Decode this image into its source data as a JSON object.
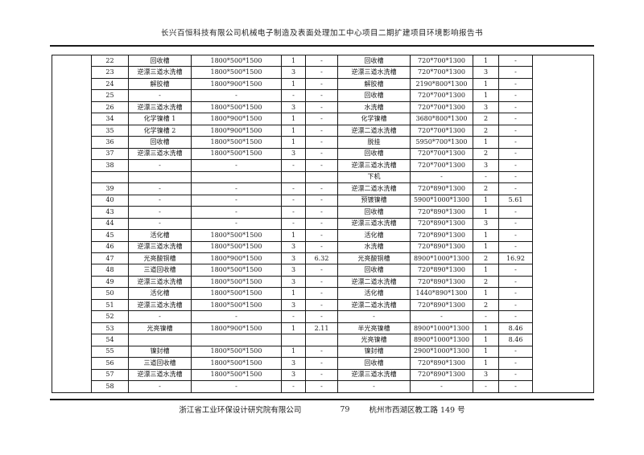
{
  "header": {
    "title": "长兴百恒科技有限公司机械电子制造及表面处理加工中心项目二期扩建项目环境影响报告书"
  },
  "footer": {
    "company": "浙江省工业环保设计研究院有限公司",
    "page_number": "79",
    "address": "杭州市西湖区教工路 149 号"
  },
  "table": {
    "columns": [
      "num",
      "name1",
      "size1",
      "qty1",
      "val1",
      "name2",
      "size2",
      "qty2",
      "val2"
    ],
    "rows": [
      {
        "num": "22",
        "name1": "回收槽",
        "size1": "1800*500*1500",
        "qty1": "1",
        "val1": "-",
        "name2": "回收槽",
        "size2": "720*700*1300",
        "qty2": "1",
        "val2": "-"
      },
      {
        "num": "23",
        "name1": "逆漂三道水洗槽",
        "size1": "1800*500*1500",
        "qty1": "3",
        "val1": "-",
        "name2": "逆漂三道水洗槽",
        "size2": "720*700*1300",
        "qty2": "3",
        "val2": "-"
      },
      {
        "num": "24",
        "name1": "解胶槽",
        "size1": "1800*900*1500",
        "qty1": "1",
        "val1": "-",
        "name2": "解胶槽",
        "size2": "2190*800*1300",
        "qty2": "1",
        "val2": "-"
      },
      {
        "num": "25",
        "name1": "-",
        "size1": "-",
        "qty1": "-",
        "val1": "-",
        "name2": "回收槽",
        "size2": "720*700*1300",
        "qty2": "1",
        "val2": "-"
      },
      {
        "num": "26",
        "name1": "逆漂三道水洗槽",
        "size1": "1800*500*1500",
        "qty1": "3",
        "val1": "-",
        "name2": "水洗槽",
        "size2": "720*700*1300",
        "qty2": "3",
        "val2": "-"
      },
      {
        "num": "34",
        "name1": "化学镍槽 1",
        "size1": "1800*900*1500",
        "qty1": "1",
        "val1": "-",
        "name2": "化学镍槽",
        "size2": "3680*800*1300",
        "qty2": "2",
        "val2": "-"
      },
      {
        "num": "35",
        "name1": "化学镍槽 2",
        "size1": "1800*900*1500",
        "qty1": "1",
        "val1": "-",
        "name2": "逆漂二道水洗槽",
        "size2": "720*700*1300",
        "qty2": "2",
        "val2": "-"
      },
      {
        "num": "36",
        "name1": "回收槽",
        "size1": "1800*500*1500",
        "qty1": "1",
        "val1": "-",
        "name2": "脱挂",
        "size2": "5950*700*1300",
        "qty2": "1",
        "val2": "-"
      },
      {
        "num": "37",
        "name1": "逆漂三道水洗槽",
        "size1": "1800*500*1500",
        "qty1": "3",
        "val1": "-",
        "name2": "回收槽",
        "size2": "720*700*1300",
        "qty2": "2",
        "val2": "-"
      },
      {
        "num": "38",
        "name1": "-",
        "size1": "-",
        "qty1": "-",
        "val1": "-",
        "name2": "逆漂三道水洗槽",
        "size2": "720*700*1300",
        "qty2": "3",
        "val2": "-"
      },
      {
        "num": "",
        "name1": "",
        "size1": "",
        "qty1": "",
        "val1": "",
        "name2": "下机",
        "size2": "-",
        "qty2": "-",
        "val2": "-"
      },
      {
        "num": "39",
        "name1": "-",
        "size1": "-",
        "qty1": "-",
        "val1": "-",
        "name2": "逆漂二道水洗槽",
        "size2": "720*890*1300",
        "qty2": "2",
        "val2": "-"
      },
      {
        "num": "40",
        "name1": "-",
        "size1": "-",
        "qty1": "-",
        "val1": "-",
        "name2": "预镀镍槽",
        "size2": "5900*1000*1300",
        "qty2": "1",
        "val2": "5.61"
      },
      {
        "num": "43",
        "name1": "-",
        "size1": "-",
        "qty1": "-",
        "val1": "-",
        "name2": "回收槽",
        "size2": "720*890*1300",
        "qty2": "1",
        "val2": "-"
      },
      {
        "num": "44",
        "name1": "-",
        "size1": "-",
        "qty1": "-",
        "val1": "-",
        "name2": "逆漂三道水洗槽",
        "size2": "720*890*1300",
        "qty2": "3",
        "val2": "-"
      },
      {
        "num": "45",
        "name1": "活化槽",
        "size1": "1800*500*1500",
        "qty1": "1",
        "val1": "-",
        "name2": "活化槽",
        "size2": "720*890*1300",
        "qty2": "1",
        "val2": "-"
      },
      {
        "num": "46",
        "name1": "逆漂三道水洗槽",
        "size1": "1800*500*1500",
        "qty1": "3",
        "val1": "-",
        "name2": "水洗槽",
        "size2": "720*890*1300",
        "qty2": "1",
        "val2": "-"
      },
      {
        "num": "47",
        "name1": "光亮酸铜槽",
        "size1": "1800*900*1500",
        "qty1": "3",
        "val1": "6.32",
        "name2": "光亮酸铜槽",
        "size2": "8900*1000*1300",
        "qty2": "2",
        "val2": "16.92"
      },
      {
        "num": "48",
        "name1": "三道回收槽",
        "size1": "1800*500*1500",
        "qty1": "3",
        "val1": "-",
        "name2": "回收槽",
        "size2": "720*890*1300",
        "qty2": "1",
        "val2": "-"
      },
      {
        "num": "49",
        "name1": "逆漂三道水洗槽",
        "size1": "1800*500*1500",
        "qty1": "3",
        "val1": "-",
        "name2": "逆漂二道水洗槽",
        "size2": "720*890*1300",
        "qty2": "2",
        "val2": "-"
      },
      {
        "num": "50",
        "name1": "活化槽",
        "size1": "1800*500*1500",
        "qty1": "1",
        "val1": "-",
        "name2": "活化槽",
        "size2": "1440*890*1300",
        "qty2": "1",
        "val2": "-"
      },
      {
        "num": "51",
        "name1": "逆漂三道水洗槽",
        "size1": "1800*500*1500",
        "qty1": "3",
        "val1": "-",
        "name2": "逆漂二道水洗槽",
        "size2": "720*890*1300",
        "qty2": "2",
        "val2": "-"
      },
      {
        "num": "52",
        "name1": "-",
        "size1": "-",
        "qty1": "-",
        "val1": "-",
        "name2": "-",
        "size2": "-",
        "qty2": "-",
        "val2": "-"
      },
      {
        "num": "53",
        "name1": "光亮镍槽",
        "size1": "1800*900*1500",
        "qty1": "1",
        "val1": "2.11",
        "name2": "半光亮镍槽",
        "size2": "8900*1000*1300",
        "qty2": "1",
        "val2": "8.46"
      },
      {
        "num": "54",
        "name1": "",
        "size1": "",
        "qty1": "",
        "val1": "",
        "name2": "光亮镍槽",
        "size2": "8900*1000*1300",
        "qty2": "1",
        "val2": "8.46"
      },
      {
        "num": "55",
        "name1": "镍封槽",
        "size1": "1800*500*1500",
        "qty1": "1",
        "val1": "-",
        "name2": "镍封槽",
        "size2": "2900*1000*1300",
        "qty2": "1",
        "val2": "-"
      },
      {
        "num": "56",
        "name1": "三道回收槽",
        "size1": "1800*500*1500",
        "qty1": "3",
        "val1": "-",
        "name2": "回收槽",
        "size2": "720*890*1300",
        "qty2": "1",
        "val2": "-"
      },
      {
        "num": "57",
        "name1": "逆漂三道水洗槽",
        "size1": "1800*500*1500",
        "qty1": "3",
        "val1": "-",
        "name2": "逆漂三道水洗槽",
        "size2": "720*890*1300",
        "qty2": "3",
        "val2": "-"
      },
      {
        "num": "58",
        "name1": "-",
        "size1": "-",
        "qty1": "-",
        "val1": "-",
        "name2": "-",
        "size2": "-",
        "qty2": "-",
        "val2": "-"
      }
    ]
  }
}
